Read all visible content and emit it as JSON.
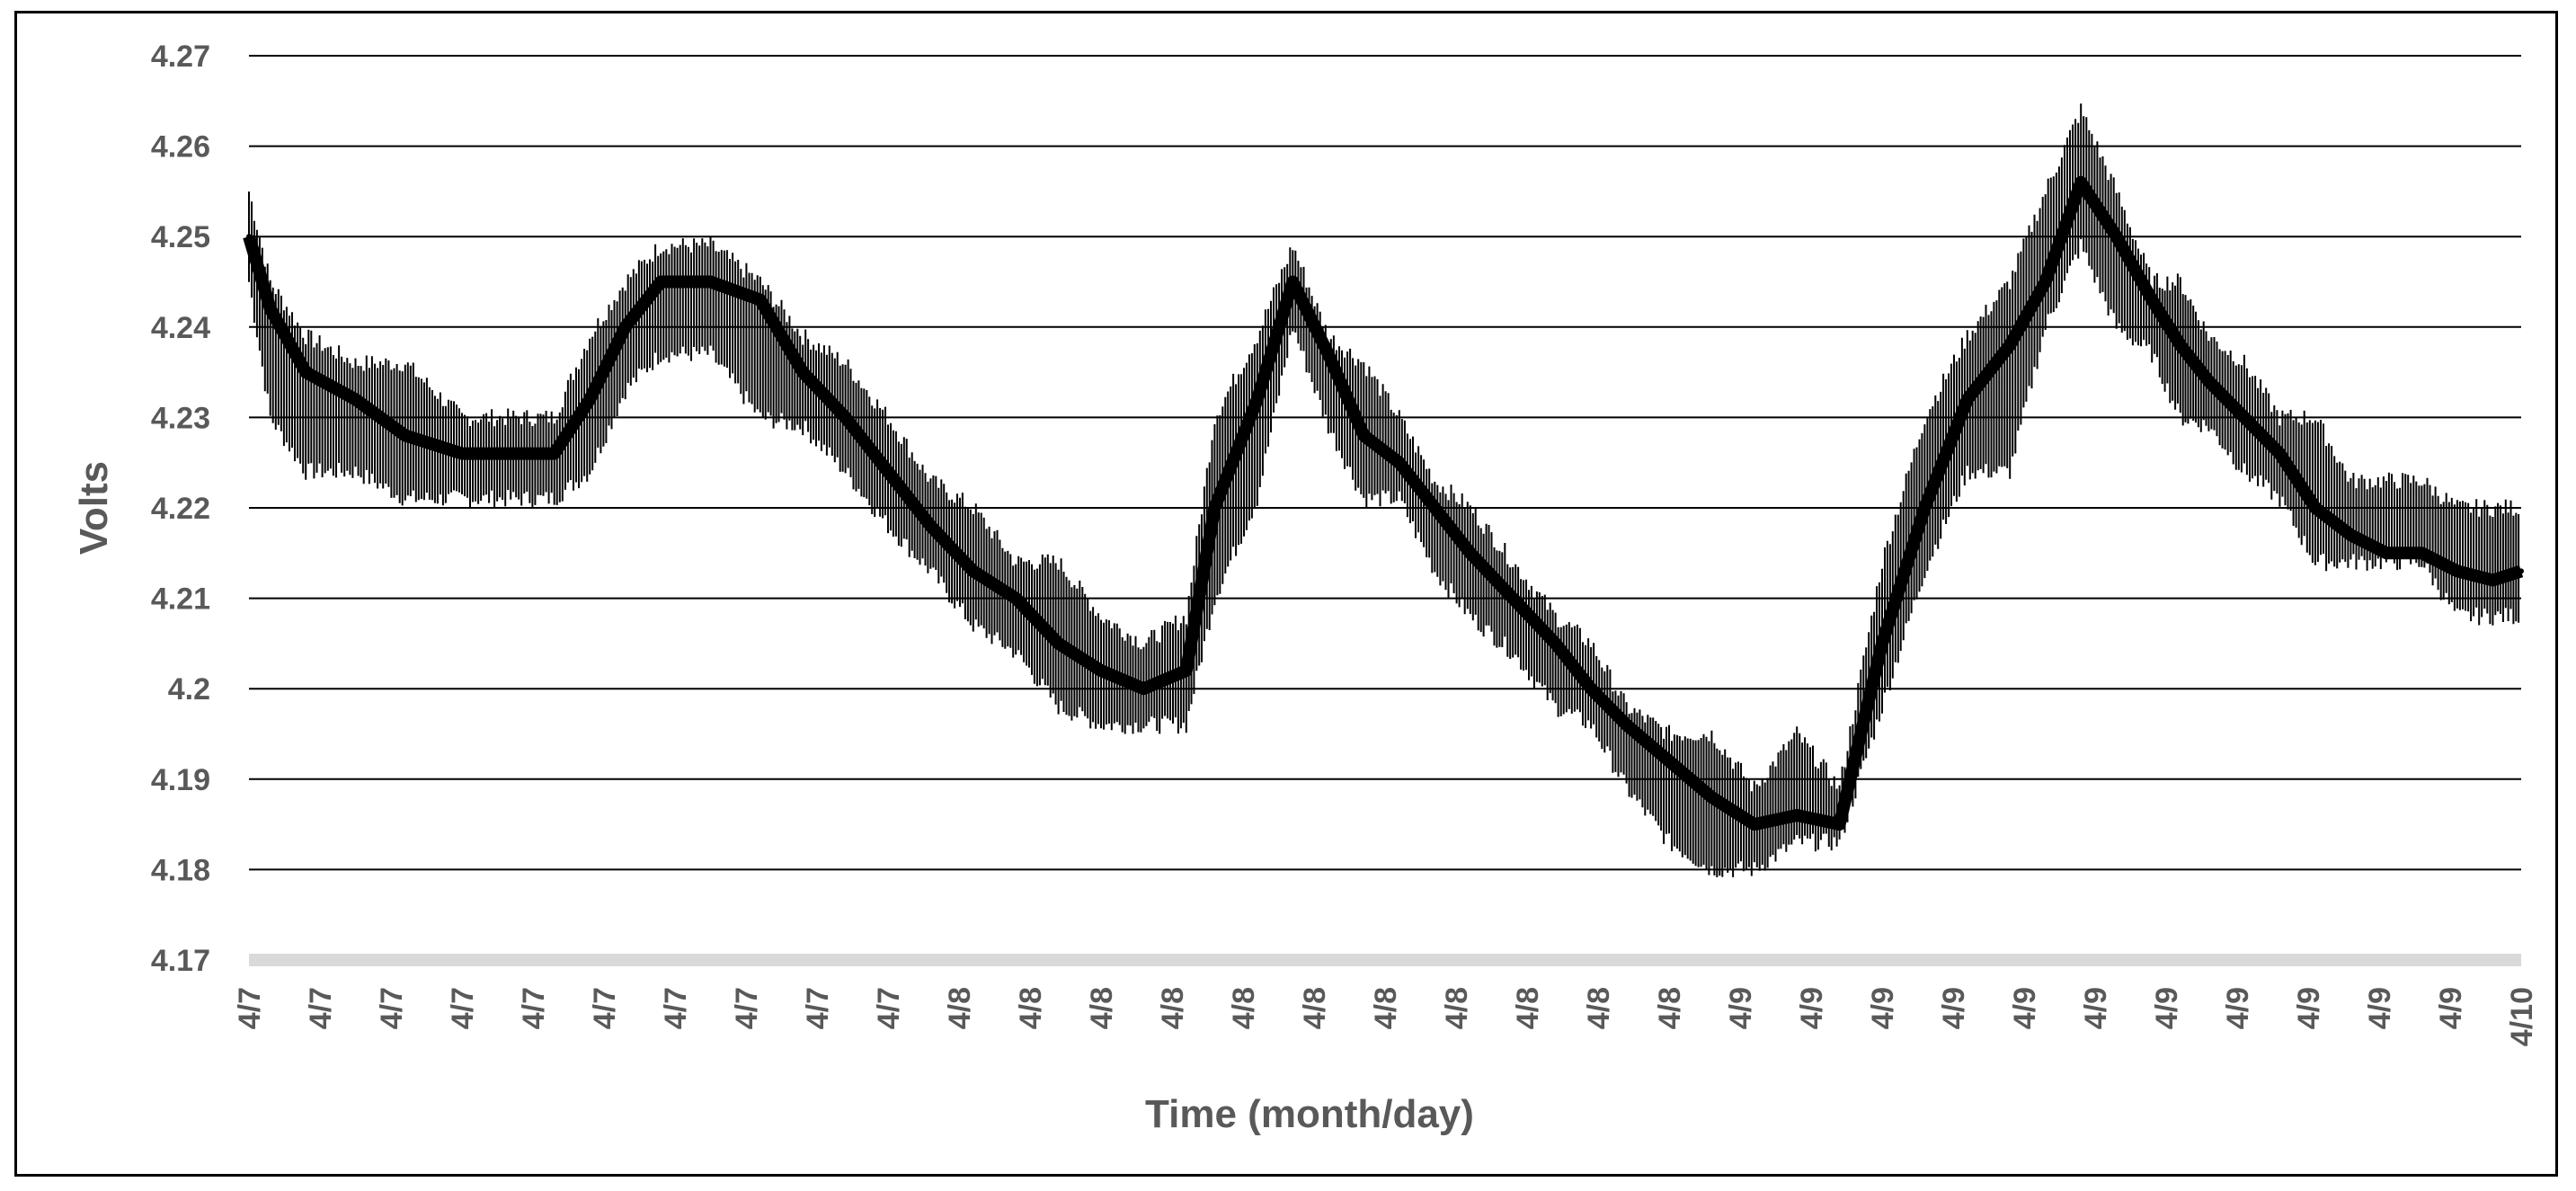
{
  "chart_data": {
    "type": "line",
    "title": "",
    "xlabel": "Time (month/day)",
    "ylabel": "Volts",
    "ylim": [
      4.17,
      4.27
    ],
    "y_ticks": [
      "4.27",
      "4.26",
      "4.25",
      "4.24",
      "4.23",
      "4.22",
      "4.21",
      "4.2",
      "4.19",
      "4.18",
      "4.17"
    ],
    "x_tick_labels": [
      "4/7",
      "4/7",
      "4/7",
      "4/7",
      "4/7",
      "4/7",
      "4/7",
      "4/7",
      "4/7",
      "4/7",
      "4/8",
      "4/8",
      "4/8",
      "4/8",
      "4/8",
      "4/8",
      "4/8",
      "4/8",
      "4/8",
      "4/8",
      "4/8",
      "4/9",
      "4/9",
      "4/9",
      "4/9",
      "4/9",
      "4/9",
      "4/9",
      "4/9",
      "4/9",
      "4/9",
      "4/9",
      "4/10"
    ],
    "x_range": [
      0,
      32
    ],
    "grid": "horizontal",
    "series_color": "#000000",
    "series": [
      {
        "x": [
          0,
          0.3,
          0.8,
          1.5,
          2.2,
          3.0,
          3.8,
          4.3,
          4.8,
          5.3,
          5.8,
          6.5,
          7.2,
          7.8,
          8.4,
          9.0,
          9.6,
          10.2,
          10.8,
          11.4,
          12.0,
          12.6,
          13.2,
          13.6,
          14.2,
          14.7,
          15.2,
          15.7,
          16.2,
          16.7,
          17.2,
          17.8,
          18.4,
          18.9,
          19.4,
          20.0,
          20.6,
          21.2,
          21.8,
          22.4,
          23.0,
          23.6,
          24.2,
          24.8,
          25.3,
          25.8,
          26.3,
          26.8,
          27.2,
          27.6,
          28.1,
          28.6,
          29.1,
          29.6,
          30.1,
          30.6,
          31.1,
          31.6,
          32.0
        ],
        "y": [
          4.25,
          4.242,
          4.235,
          4.232,
          4.228,
          4.226,
          4.226,
          4.226,
          4.232,
          4.24,
          4.245,
          4.245,
          4.243,
          4.235,
          4.23,
          4.224,
          4.218,
          4.213,
          4.21,
          4.205,
          4.202,
          4.2,
          4.202,
          4.22,
          4.232,
          4.245,
          4.237,
          4.228,
          4.225,
          4.22,
          4.215,
          4.21,
          4.205,
          4.2,
          4.196,
          4.192,
          4.188,
          4.185,
          4.186,
          4.185,
          4.205,
          4.22,
          4.232,
          4.238,
          4.245,
          4.256,
          4.25,
          4.243,
          4.238,
          4.234,
          4.23,
          4.226,
          4.22,
          4.217,
          4.215,
          4.215,
          4.213,
          4.212,
          4.213
        ],
        "y_low": [
          4.245,
          4.23,
          4.224,
          4.224,
          4.221,
          4.221,
          4.221,
          4.221,
          4.224,
          4.233,
          4.237,
          4.237,
          4.23,
          4.229,
          4.224,
          4.218,
          4.213,
          4.207,
          4.204,
          4.198,
          4.196,
          4.196,
          4.196,
          4.21,
          4.221,
          4.24,
          4.229,
          4.221,
          4.221,
          4.213,
          4.208,
          4.204,
          4.198,
          4.196,
          4.189,
          4.183,
          4.18,
          4.18,
          4.183,
          4.183,
          4.198,
          4.213,
          4.224,
          4.224,
          4.24,
          4.249,
          4.24,
          4.237,
          4.23,
          4.229,
          4.224,
          4.221,
          4.214,
          4.214,
          4.214,
          4.214,
          4.208,
          4.208,
          4.208
        ],
        "y_high": [
          4.255,
          4.245,
          4.239,
          4.236,
          4.236,
          4.23,
          4.23,
          4.23,
          4.239,
          4.245,
          4.249,
          4.249,
          4.245,
          4.239,
          4.236,
          4.23,
          4.223,
          4.22,
          4.214,
          4.214,
          4.208,
          4.205,
          4.208,
          4.23,
          4.239,
          4.249,
          4.239,
          4.236,
          4.23,
          4.223,
          4.22,
          4.214,
          4.208,
          4.205,
          4.198,
          4.195,
          4.195,
          4.189,
          4.195,
          4.189,
          4.214,
          4.23,
          4.239,
          4.245,
          4.255,
          4.264,
          4.255,
          4.245,
          4.245,
          4.239,
          4.236,
          4.23,
          4.23,
          4.223,
          4.223,
          4.223,
          4.22,
          4.22,
          4.22
        ]
      }
    ]
  }
}
